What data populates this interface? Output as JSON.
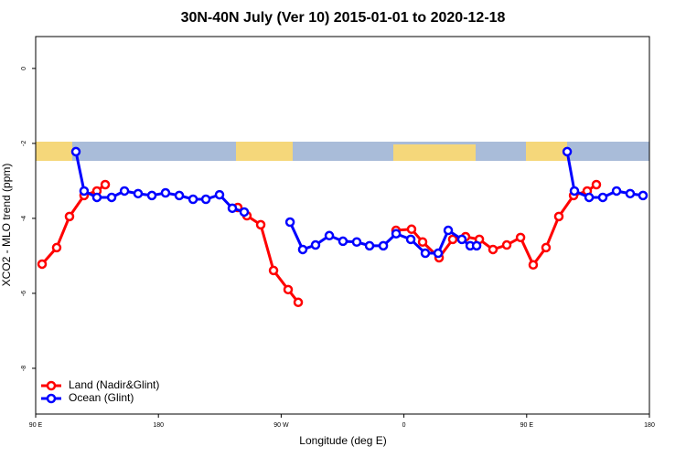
{
  "chart_data": {
    "type": "line",
    "title": "30N-40N July (Ver 10)   2015-01-01 to 2020-12-18",
    "x_label": "Longitude (deg E)",
    "y_label": "XCO2 - MLO trend (ppm)",
    "xlim": [
      90,
      540
    ],
    "ylim": [
      -9.22,
      0.85
    ],
    "xticks": [
      {
        "value": 90,
        "label": "90 E"
      },
      {
        "value": 180,
        "label": "180"
      },
      {
        "value": 270,
        "label": "90 W"
      },
      {
        "value": 360,
        "label": "0"
      },
      {
        "value": 450,
        "label": "90 E"
      },
      {
        "value": 540,
        "label": "180"
      }
    ],
    "yticks": [
      -8,
      -6,
      -4,
      -2,
      0
    ],
    "legend": "bottom-left",
    "series": [
      {
        "name": "Land (Nadir&Glint)",
        "color": "#ff0000",
        "x": [
          94.7,
          105.4,
          114.8,
          125.5,
          134.9,
          141.0,
          null,
          238.2,
          244.9,
          255.0,
          264.4,
          275.1,
          282.5,
          null,
          354.2,
          365.6,
          373.7,
          385.8,
          395.8,
          405.2,
          415.3,
          425.3,
          435.4,
          445.5,
          454.8,
          464.2,
          473.6,
          484.4,
          494.4,
          501.1
        ],
        "values": [
          -5.22,
          -4.78,
          -3.95,
          -3.39,
          -3.27,
          -3.1,
          null,
          -3.71,
          -3.93,
          -4.17,
          -5.39,
          -5.9,
          -6.24,
          null,
          -4.32,
          -4.29,
          -4.63,
          -5.05,
          -4.56,
          -4.49,
          -4.56,
          -4.83,
          -4.71,
          -4.51,
          -5.24,
          -4.78,
          -3.95,
          -3.39,
          -3.27,
          -3.1
        ]
      },
      {
        "name": "Ocean (Glint)",
        "color": "#0000ff",
        "x": [
          119.5,
          125.5,
          134.9,
          145.7,
          155.1,
          165.1,
          175.2,
          185.2,
          195.3,
          205.4,
          214.8,
          224.8,
          234.2,
          242.9,
          null,
          276.5,
          285.8,
          295.2,
          305.3,
          315.3,
          325.4,
          334.8,
          344.9,
          354.3,
          365.0,
          375.7,
          385.1,
          392.5,
          402.5,
          408.6,
          413.3,
          null,
          479.7,
          485.0,
          495.8,
          505.8,
          515.9,
          525.9,
          535.3
        ],
        "values": [
          -2.22,
          -3.27,
          -3.44,
          -3.44,
          -3.27,
          -3.34,
          -3.39,
          -3.32,
          -3.39,
          -3.49,
          -3.49,
          -3.37,
          -3.73,
          -3.83,
          null,
          -4.1,
          -4.83,
          -4.71,
          -4.46,
          -4.61,
          -4.63,
          -4.73,
          -4.73,
          -4.41,
          -4.56,
          -4.93,
          -4.93,
          -4.32,
          -4.56,
          -4.73,
          -4.73,
          null,
          -2.22,
          -3.27,
          -3.44,
          -3.44,
          -3.27,
          -3.34,
          -3.39
        ]
      }
    ]
  }
}
